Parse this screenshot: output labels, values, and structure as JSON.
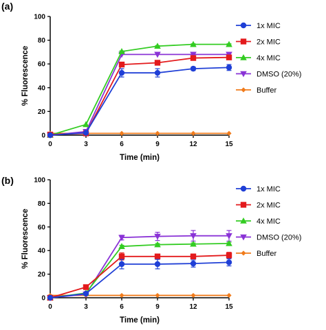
{
  "chart_data": [
    {
      "type": "line",
      "panel_label": "(a)",
      "xlabel": "Time (min)",
      "ylabel": "% Fluorescence",
      "xlim": [
        0,
        15
      ],
      "ylim": [
        0,
        100
      ],
      "xticks": [
        0,
        3,
        6,
        9,
        12,
        15
      ],
      "yticks": [
        0,
        20,
        40,
        60,
        80,
        100
      ],
      "grid": false,
      "legend_position": "right",
      "x": [
        0,
        3,
        6,
        9,
        12,
        15
      ],
      "series": [
        {
          "name": "1x MIC",
          "color": "#1f3fd6",
          "marker": "circle",
          "values": [
            0,
            2,
            52.5,
            52.5,
            56,
            57
          ],
          "errors": [
            0,
            0.5,
            3.5,
            3.5,
            1.5,
            2.5
          ]
        },
        {
          "name": "2x MIC",
          "color": "#e31a1c",
          "marker": "square",
          "values": [
            0.5,
            1.5,
            59.5,
            61,
            65,
            65.5
          ],
          "errors": [
            0,
            0,
            1,
            1,
            1,
            1
          ]
        },
        {
          "name": "4x MIC",
          "color": "#33cc22",
          "marker": "triangle-up",
          "values": [
            0,
            9,
            70.5,
            75,
            76.5,
            76.5
          ],
          "errors": [
            0,
            0,
            0.5,
            0.5,
            0.5,
            0.5
          ]
        },
        {
          "name": "DMSO (20%)",
          "color": "#8a33d6",
          "marker": "triangle-down",
          "values": [
            0,
            3,
            68,
            68,
            68,
            68
          ],
          "errors": [
            0,
            0,
            0,
            0,
            0,
            0
          ]
        },
        {
          "name": "Buffer",
          "color": "#f07b1b",
          "marker": "diamond",
          "values": [
            1.5,
            1.5,
            1.5,
            1.5,
            1.5,
            1.5
          ],
          "errors": [
            0,
            0,
            0,
            0,
            0,
            0
          ]
        }
      ]
    },
    {
      "type": "line",
      "panel_label": "(b)",
      "xlabel": "Time (min)",
      "ylabel": "% Fluorescence",
      "xlim": [
        0,
        15
      ],
      "ylim": [
        0,
        100
      ],
      "xticks": [
        0,
        3,
        6,
        9,
        12,
        15
      ],
      "yticks": [
        0,
        20,
        40,
        60,
        80,
        100
      ],
      "grid": false,
      "legend_position": "right",
      "x": [
        0,
        3,
        6,
        9,
        12,
        15
      ],
      "series": [
        {
          "name": "1x MIC",
          "color": "#1f3fd6",
          "marker": "circle",
          "values": [
            0,
            3.5,
            28.5,
            28.5,
            29,
            30
          ],
          "errors": [
            0,
            0.5,
            4,
            4,
            3,
            3
          ]
        },
        {
          "name": "2x MIC",
          "color": "#e31a1c",
          "marker": "square",
          "values": [
            0,
            9,
            35,
            35,
            35,
            36
          ],
          "errors": [
            0,
            0.5,
            3,
            2,
            2,
            2.5
          ]
        },
        {
          "name": "4x MIC",
          "color": "#33cc22",
          "marker": "triangle-up",
          "values": [
            0,
            4,
            43.5,
            45,
            45.5,
            46
          ],
          "errors": [
            0,
            0,
            1,
            1,
            1,
            1
          ]
        },
        {
          "name": "DMSO (20%)",
          "color": "#8a33d6",
          "marker": "triangle-down",
          "values": [
            0,
            3,
            51,
            52,
            52.5,
            52.5
          ],
          "errors": [
            0,
            0,
            2,
            3.5,
            4.5,
            4.5
          ]
        },
        {
          "name": "Buffer",
          "color": "#f07b1b",
          "marker": "diamond",
          "values": [
            2,
            2,
            2,
            2,
            2,
            2
          ],
          "errors": [
            0,
            0,
            0,
            0,
            0,
            0
          ]
        }
      ]
    }
  ]
}
